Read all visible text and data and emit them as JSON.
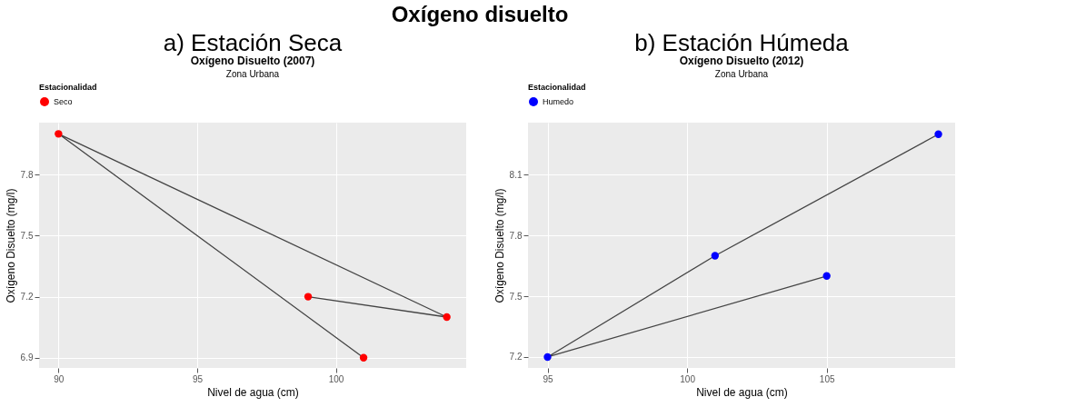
{
  "chart_data": [
    {
      "type": "line",
      "title": "Oxígeno Disuelto (2007)",
      "subtitle": "Zona Urbana",
      "annotations": [
        "Oxígeno disuelto",
        "a)  Estación Seca"
      ],
      "xlabel": "Nivel de agua (cm)",
      "ylabel": "Oxígeno Disuelto (mg/l)",
      "legend_title": "Estacionalidad",
      "legend": "top",
      "marker": "circle",
      "grid": true,
      "series": [
        {
          "name": "Seco",
          "color": "#ff0000",
          "x": [
            99,
            104,
            90,
            101
          ],
          "values": [
            7.2,
            7.1,
            8.0,
            6.9
          ]
        }
      ],
      "xlim": [
        89.3,
        104.7
      ],
      "xticks": [
        90,
        95,
        100
      ],
      "ylim": [
        6.85,
        8.055
      ],
      "yticks": [
        6.9,
        7.2,
        7.5,
        7.8
      ]
    },
    {
      "type": "line",
      "title": "Oxígeno Disuelto (2012)",
      "subtitle": "Zona Urbana",
      "annotations": [
        "b)  Estación Húmeda"
      ],
      "xlabel": "Nivel de agua (cm)",
      "ylabel": "Oxígeno Disuelto (mg/l)",
      "legend_title": "Estacionalidad",
      "legend": "top",
      "marker": "circle",
      "grid": true,
      "series": [
        {
          "name": "Humedo",
          "color": "#0000ff",
          "x": [
            109,
            101,
            95,
            105
          ],
          "values": [
            8.3,
            7.7,
            7.2,
            7.6
          ]
        }
      ],
      "xlim": [
        94.3,
        109.6
      ],
      "xticks": [
        95,
        100,
        105
      ],
      "ylim": [
        7.146,
        8.357
      ],
      "yticks": [
        7.2,
        7.5,
        7.8,
        8.1
      ]
    }
  ]
}
